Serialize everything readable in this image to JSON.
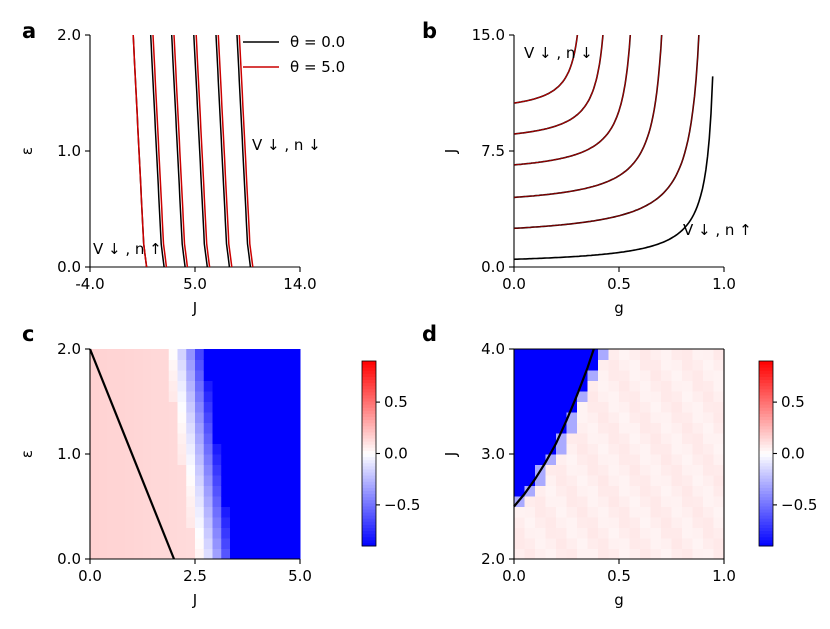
{
  "figure": {
    "panels": [
      {
        "id": "a",
        "label": "a"
      },
      {
        "id": "b",
        "label": "b"
      },
      {
        "id": "c",
        "label": "c"
      },
      {
        "id": "d",
        "label": "d"
      }
    ]
  },
  "chart_data": [
    {
      "panel": "a",
      "type": "line",
      "xlabel": "J",
      "ylabel": "ε",
      "xlim": [
        -4.0,
        14.0
      ],
      "ylim": [
        0.0,
        2.0
      ],
      "xticks": [
        "-4.0",
        "5.0",
        "14.0"
      ],
      "yticks": [
        "0.0",
        "1.0",
        "2.0"
      ],
      "legend": {
        "placement": "top-right",
        "entries": [
          {
            "label": "θ = 0.0",
            "color": "#000000"
          },
          {
            "label": "θ = 5.0",
            "color": "#cc0000"
          }
        ]
      },
      "annotations": [
        {
          "text": "V ↓ , n ↑",
          "at": [
            -4.0,
            0.12
          ]
        },
        {
          "text": "V ↓ , n ↓",
          "at": [
            10.5,
            1.0
          ]
        }
      ],
      "series": [
        {
          "theta": 0.0,
          "x": [
            -0.3,
            0.7
          ],
          "y": [
            2.0,
            0.0
          ]
        },
        {
          "theta": 5.0,
          "x": [
            -0.3,
            0.7
          ],
          "y": [
            2.0,
            0.0
          ]
        },
        {
          "theta": 0.0,
          "x": [
            1.2,
            2.2
          ],
          "y": [
            2.0,
            0.0
          ]
        },
        {
          "theta": 5.0,
          "x": [
            1.4,
            2.4
          ],
          "y": [
            2.0,
            0.0
          ]
        },
        {
          "theta": 0.0,
          "x": [
            3.0,
            4.0
          ],
          "y": [
            2.0,
            0.0
          ]
        },
        {
          "theta": 5.0,
          "x": [
            3.2,
            4.2
          ],
          "y": [
            2.0,
            0.0
          ]
        },
        {
          "theta": 0.0,
          "x": [
            4.9,
            5.9
          ],
          "y": [
            2.0,
            0.0
          ]
        },
        {
          "theta": 5.0,
          "x": [
            5.1,
            6.1
          ],
          "y": [
            2.0,
            0.0
          ]
        },
        {
          "theta": 0.0,
          "x": [
            6.8,
            7.8
          ],
          "y": [
            2.0,
            0.0
          ]
        },
        {
          "theta": 5.0,
          "x": [
            7.0,
            8.0
          ],
          "y": [
            2.0,
            0.0
          ]
        },
        {
          "theta": 0.0,
          "x": [
            8.6,
            9.6
          ],
          "y": [
            2.0,
            0.0
          ]
        },
        {
          "theta": 5.0,
          "x": [
            8.8,
            9.8
          ],
          "y": [
            2.0,
            0.0
          ]
        }
      ]
    },
    {
      "panel": "b",
      "type": "line",
      "xlabel": "g",
      "ylabel": "J",
      "xlim": [
        0.0,
        1.0
      ],
      "ylim": [
        0.0,
        15.0
      ],
      "xticks": [
        "0.0",
        "0.5",
        "1.0"
      ],
      "yticks": [
        "0.0",
        "7.5",
        "15.0"
      ],
      "annotations": [
        {
          "text": "V ↓ , n ↓",
          "at": [
            0.05,
            13.8
          ]
        },
        {
          "text": "V ↓ , n ↑",
          "at": [
            0.8,
            2.2
          ]
        }
      ],
      "series": [
        {
          "theta": 0.0,
          "J0": 0.5,
          "gc": 0.98
        },
        {
          "theta": 0.0,
          "J0": 2.5,
          "gc": 0.93
        },
        {
          "theta": 0.0,
          "J0": 4.5,
          "gc": 0.75
        },
        {
          "theta": 0.0,
          "J0": 6.6,
          "gc": 0.6
        },
        {
          "theta": 0.0,
          "J0": 8.6,
          "gc": 0.47
        },
        {
          "theta": 0.0,
          "J0": 10.6,
          "gc": 0.35
        }
      ]
    },
    {
      "panel": "c",
      "type": "heatmap",
      "xlabel": "J",
      "ylabel": "ε",
      "xlim": [
        0.0,
        5.0
      ],
      "ylim": [
        0.0,
        2.0
      ],
      "xticks": [
        "0.0",
        "2.5",
        "5.0"
      ],
      "yticks": [
        "0.0",
        "1.0",
        "2.0"
      ],
      "boundary": {
        "x": [
          0.0,
          2.0
        ],
        "y": [
          2.0,
          0.0
        ]
      },
      "colorbar": {
        "range": [
          -0.9,
          0.9
        ],
        "ticks": [
          "0.5",
          "0.0",
          "−0.5"
        ],
        "colors": [
          "#0000ff",
          "#ffffff",
          "#ff0000"
        ]
      },
      "grid": {
        "nx": 24,
        "ny": 20
      }
    },
    {
      "panel": "d",
      "type": "heatmap",
      "xlabel": "g",
      "ylabel": "J",
      "xlim": [
        0.0,
        1.0
      ],
      "ylim": [
        2.0,
        4.0
      ],
      "xticks": [
        "0.0",
        "0.5",
        "1.0"
      ],
      "yticks": [
        "2.0",
        "3.0",
        "4.0"
      ],
      "boundary": {
        "g": [
          0.0,
          0.05,
          0.1,
          0.15,
          0.2,
          0.25,
          0.3,
          0.35,
          0.38
        ],
        "J": [
          2.5,
          2.62,
          2.76,
          2.92,
          3.1,
          3.32,
          3.56,
          3.82,
          4.0
        ]
      },
      "colorbar": {
        "range": [
          -0.9,
          0.9
        ],
        "ticks": [
          "0.5",
          "0.0",
          "−0.5"
        ],
        "colors": [
          "#0000ff",
          "#ffffff",
          "#ff0000"
        ]
      },
      "grid": {
        "nx": 20,
        "ny": 20
      }
    }
  ]
}
